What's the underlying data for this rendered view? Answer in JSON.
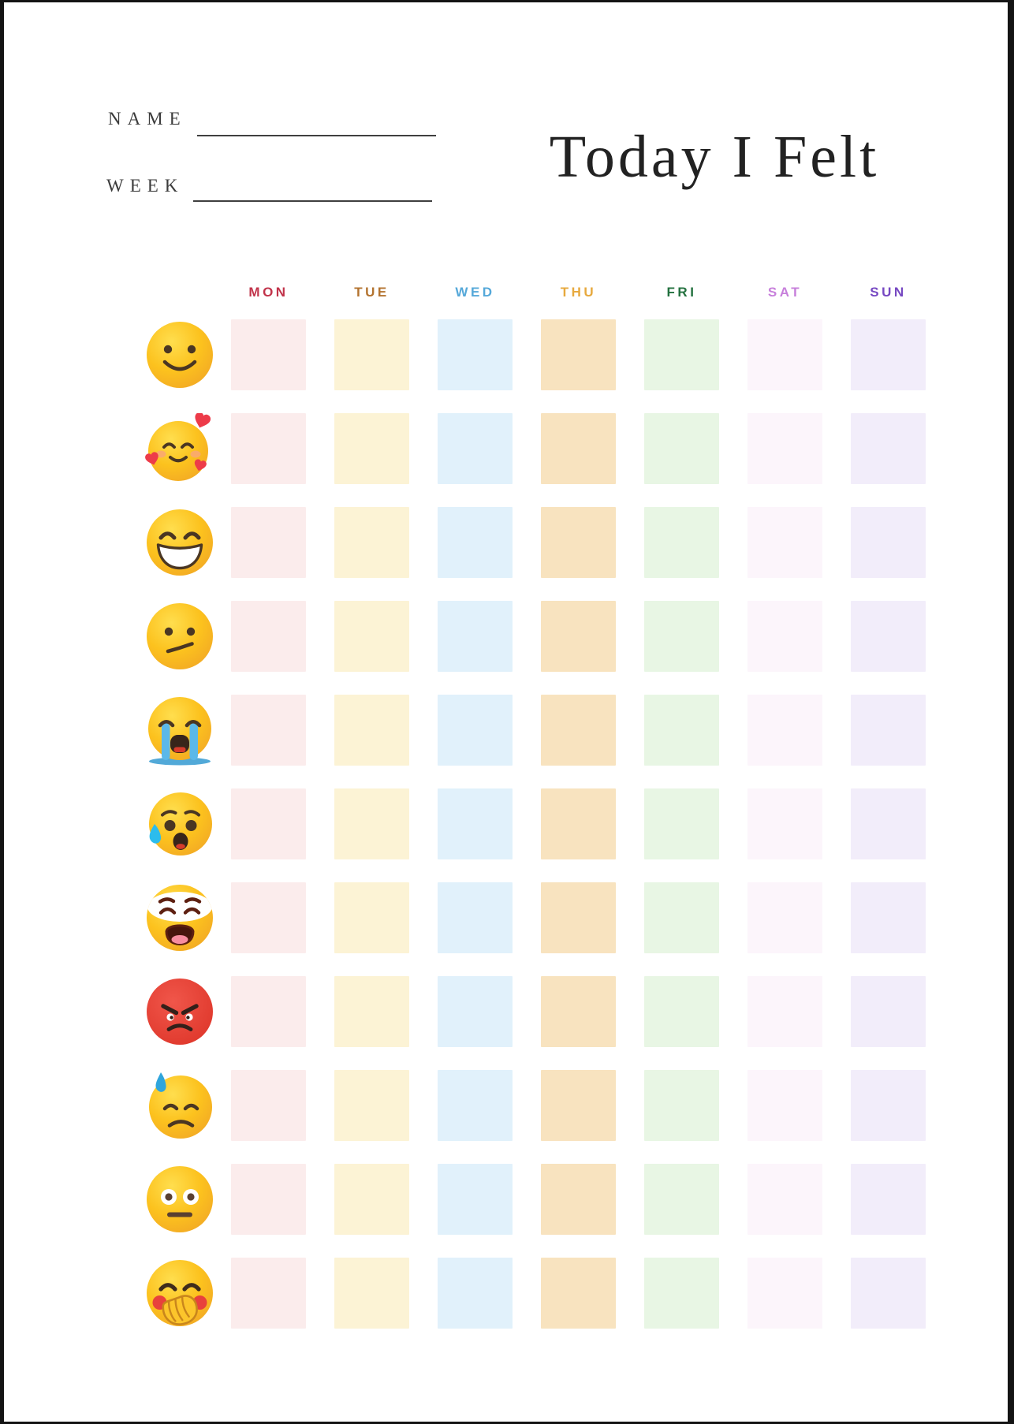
{
  "page": {
    "background": "#ffffff",
    "edge_color": "#141414"
  },
  "header": {
    "name_label": "NAME",
    "name_value": "",
    "week_label": "WEEK",
    "week_value": "",
    "title": "Today I Felt"
  },
  "tracker": {
    "days": [
      {
        "label": "MON",
        "label_color": "#C1334A",
        "cell_color": "#FBECEC"
      },
      {
        "label": "TUE",
        "label_color": "#B3732F",
        "cell_color": "#FCF3D5"
      },
      {
        "label": "WED",
        "label_color": "#55A8D9",
        "cell_color": "#E1F1FB"
      },
      {
        "label": "THU",
        "label_color": "#E7A93E",
        "cell_color": "#F8E3BF"
      },
      {
        "label": "FRI",
        "label_color": "#23713F",
        "cell_color": "#E8F6E4"
      },
      {
        "label": "SAT",
        "label_color": "#C77FDB",
        "cell_color": "#FCF5FB"
      },
      {
        "label": "SUN",
        "label_color": "#7648C2",
        "cell_color": "#F2EDFA"
      }
    ],
    "moods": [
      {
        "icon": "slightly-smiling-face-icon",
        "char": "🙂"
      },
      {
        "icon": "smiling-face-with-hearts-icon",
        "char": "🥰"
      },
      {
        "icon": "beaming-face-with-smiling-eyes-icon",
        "char": "😁"
      },
      {
        "icon": "confused-face-icon",
        "char": "😕"
      },
      {
        "icon": "loudly-crying-face-icon",
        "char": "😭"
      },
      {
        "icon": "anxious-face-with-sweat-icon",
        "char": "😰"
      },
      {
        "icon": "weary-face-icon",
        "char": "😩"
      },
      {
        "icon": "enraged-face-icon",
        "char": "😡"
      },
      {
        "icon": "downcast-face-with-sweat-icon",
        "char": "😓"
      },
      {
        "icon": "neutral-face-icon",
        "char": "😐"
      },
      {
        "icon": "face-with-hand-over-mouth-icon",
        "char": "🤭"
      }
    ]
  }
}
